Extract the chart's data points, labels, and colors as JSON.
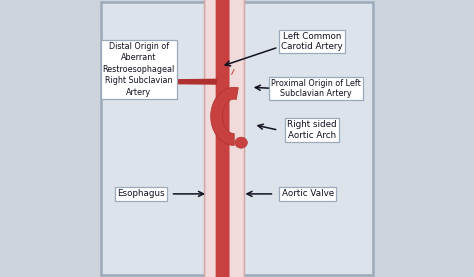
{
  "bg_color": "#cdd4dc",
  "inner_bg_color": "#dde3ea",
  "border_color": "#9aaabb",
  "aorta_dark": "#b03030",
  "aorta_mid": "#c84040",
  "aorta_light_fill": "#e8c0c0",
  "esoph_fill": "#f0dada",
  "esoph_border": "#d4a8a8",
  "text_color": "#111122",
  "arrow_color": "#111122",
  "labels": {
    "top_left": "Distal Origin of\nAberrant\nRestroesophageal\nRight Subclavian\nArtery",
    "bottom_left": "Esophagus",
    "top_right": "Left Common\nCarotid Artery",
    "mid_right1": "Proximal Origin of Left\nSubclavian Artery",
    "mid_right2": "Right sided\nAortic Arch",
    "bottom_right": "Aortic Valve"
  },
  "figsize": [
    4.74,
    2.77
  ],
  "dpi": 100
}
